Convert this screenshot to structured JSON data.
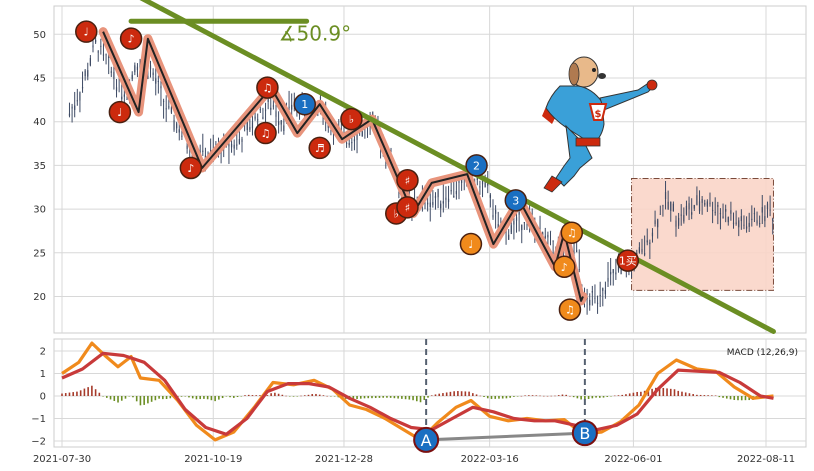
{
  "chart_data": [
    {
      "type": "candlestick",
      "x_ticks": [
        "2021-07-30",
        "2021-10-19",
        "2021-12-28",
        "2022-03-16",
        "2022-06-01",
        "2022-08-11"
      ],
      "y_ticks": [
        20,
        25,
        30,
        35,
        40,
        45,
        50
      ],
      "ylim": [
        15.5,
        53.5
      ],
      "price_path": [
        {
          "x": "2021-08-03",
          "y": 41
        },
        {
          "x": "2021-08-10",
          "y": 44
        },
        {
          "x": "2021-08-17",
          "y": 49
        },
        {
          "x": "2021-08-25",
          "y": 46
        },
        {
          "x": "2021-09-02",
          "y": 43
        },
        {
          "x": "2021-09-08",
          "y": 47
        },
        {
          "x": "2021-09-15",
          "y": 46
        },
        {
          "x": "2021-09-23",
          "y": 42
        },
        {
          "x": "2021-10-01",
          "y": 39
        },
        {
          "x": "2021-10-08",
          "y": 37
        },
        {
          "x": "2021-10-16",
          "y": 36
        },
        {
          "x": "2021-10-25",
          "y": 37
        },
        {
          "x": "2021-11-03",
          "y": 38
        },
        {
          "x": "2021-11-12",
          "y": 41
        },
        {
          "x": "2021-11-20",
          "y": 42
        },
        {
          "x": "2021-11-25",
          "y": 40
        },
        {
          "x": "2021-12-01",
          "y": 42
        },
        {
          "x": "2021-12-08",
          "y": 41
        },
        {
          "x": "2021-12-15",
          "y": 42
        },
        {
          "x": "2021-12-22",
          "y": 39
        },
        {
          "x": "2021-12-30",
          "y": 38
        },
        {
          "x": "2022-01-06",
          "y": 39
        },
        {
          "x": "2022-01-12",
          "y": 40
        },
        {
          "x": "2022-01-19",
          "y": 37
        },
        {
          "x": "2022-01-26",
          "y": 33
        },
        {
          "x": "2022-02-02",
          "y": 30
        },
        {
          "x": "2022-02-09",
          "y": 31
        },
        {
          "x": "2022-02-16",
          "y": 31
        },
        {
          "x": "2022-02-23",
          "y": 32
        },
        {
          "x": "2022-03-02",
          "y": 33
        },
        {
          "x": "2022-03-09",
          "y": 33
        },
        {
          "x": "2022-03-16",
          "y": 32
        },
        {
          "x": "2022-03-21",
          "y": 27
        },
        {
          "x": "2022-03-28",
          "y": 28
        },
        {
          "x": "2022-04-05",
          "y": 29
        },
        {
          "x": "2022-04-12",
          "y": 27
        },
        {
          "x": "2022-04-19",
          "y": 26
        },
        {
          "x": "2022-04-26",
          "y": 24
        },
        {
          "x": "2022-05-02",
          "y": 25
        },
        {
          "x": "2022-05-06",
          "y": 19
        },
        {
          "x": "2022-05-12",
          "y": 20
        },
        {
          "x": "2022-05-19",
          "y": 22
        },
        {
          "x": "2022-05-26",
          "y": 23
        },
        {
          "x": "2022-06-01",
          "y": 24
        },
        {
          "x": "2022-06-06",
          "y": 25
        },
        {
          "x": "2022-06-12",
          "y": 28
        },
        {
          "x": "2022-06-18",
          "y": 31
        },
        {
          "x": "2022-06-25",
          "y": 29
        },
        {
          "x": "2022-07-02",
          "y": 30
        },
        {
          "x": "2022-07-09",
          "y": 31
        },
        {
          "x": "2022-07-16",
          "y": 30
        },
        {
          "x": "2022-07-23",
          "y": 29
        },
        {
          "x": "2022-07-30",
          "y": 28
        },
        {
          "x": "2022-08-06",
          "y": 29
        },
        {
          "x": "2022-08-12",
          "y": 30
        },
        {
          "x": "2022-08-15",
          "y": 29
        }
      ],
      "wave_path": [
        {
          "x": "2021-08-21",
          "y": 50.3
        },
        {
          "x": "2021-09-09",
          "y": 41.1
        },
        {
          "x": "2021-09-14",
          "y": 49.5
        },
        {
          "x": "2021-10-13",
          "y": 34.7
        },
        {
          "x": "2021-11-19",
          "y": 43.9
        },
        {
          "x": "2021-12-03",
          "y": 38.7
        },
        {
          "x": "2021-12-15",
          "y": 42.0
        },
        {
          "x": "2021-12-27",
          "y": 38.0
        },
        {
          "x": "2022-01-12",
          "y": 40.3
        },
        {
          "x": "2022-02-03",
          "y": 29.5
        },
        {
          "x": "2022-02-13",
          "y": 33.0
        },
        {
          "x": "2022-03-04",
          "y": 34.0
        },
        {
          "x": "2022-03-18",
          "y": 26.0
        },
        {
          "x": "2022-04-01",
          "y": 31.0
        },
        {
          "x": "2022-04-20",
          "y": 23.4
        },
        {
          "x": "2022-04-25",
          "y": 27.3
        },
        {
          "x": "2022-05-04",
          "y": 19.5
        },
        {
          "x": "2022-05-05",
          "y": 20.0
        }
      ],
      "markers": [
        {
          "x": "2021-08-12",
          "y": 50.3,
          "color": "#cc2a0e",
          "label": "♩"
        },
        {
          "x": "2021-08-30",
          "y": 41.1,
          "color": "#cc2a0e",
          "label": "♩"
        },
        {
          "x": "2021-09-05",
          "y": 49.5,
          "color": "#cc2a0e",
          "label": "♪"
        },
        {
          "x": "2021-10-07",
          "y": 34.7,
          "color": "#cc2a0e",
          "label": "♪"
        },
        {
          "x": "2021-11-17",
          "y": 43.9,
          "color": "#cc2a0e",
          "label": "♫"
        },
        {
          "x": "2021-11-16",
          "y": 38.7,
          "color": "#cc2a0e",
          "label": "♫"
        },
        {
          "x": "2021-12-07",
          "y": 42.0,
          "color": "#1a6fc2",
          "label": "1"
        },
        {
          "x": "2021-12-15",
          "y": 37.0,
          "color": "#cc2a0e",
          "label": "♬"
        },
        {
          "x": "2022-01-01",
          "y": 40.3,
          "color": "#cc2a0e",
          "label": "♭"
        },
        {
          "x": "2022-01-25",
          "y": 29.5,
          "color": "#cc2a0e",
          "label": "♭"
        },
        {
          "x": "2022-01-31",
          "y": 33.3,
          "color": "#cc2a0e",
          "label": "♯"
        },
        {
          "x": "2022-01-31",
          "y": 30.2,
          "color": "#cc2a0e",
          "label": "♯"
        },
        {
          "x": "2022-03-09",
          "y": 35.0,
          "color": "#1a6fc2",
          "label": "2"
        },
        {
          "x": "2022-03-06",
          "y": 26.0,
          "color": "#f08a1c",
          "label": "♩"
        },
        {
          "x": "2022-03-30",
          "y": 31.0,
          "color": "#1a6fc2",
          "label": "3"
        },
        {
          "x": "2022-04-25",
          "y": 23.4,
          "color": "#f08a1c",
          "label": "♪"
        },
        {
          "x": "2022-04-29",
          "y": 27.3,
          "color": "#f08a1c",
          "label": "♫"
        },
        {
          "x": "2022-04-28",
          "y": 18.5,
          "color": "#f08a1c",
          "label": "♫"
        },
        {
          "x": "2022-05-29",
          "y": 24.1,
          "color": "#cc2a0e",
          "label": "1买"
        }
      ],
      "trendline": {
        "start": {
          "x": "2021-08-25",
          "y": 56.0
        },
        "end": {
          "x": "2022-08-15",
          "y": 16.0
        }
      },
      "angle_label": "∡50.9°",
      "angle_arm": {
        "from": "2021-09-05",
        "to": "2021-12-08",
        "y": 51.5
      },
      "consolidation_box": {
        "x1": "2022-05-31",
        "x2": "2022-08-15",
        "y1": 20.7,
        "y2": 33.5
      },
      "style": {
        "grid": true,
        "trendline_color": "#6b8e23",
        "wave_color": "#e8947c",
        "candle_color": "#3d4a64",
        "box_fill": "#fad5c8",
        "box_border": "#7a4a3a"
      }
    },
    {
      "type": "macd",
      "legend": "MACD (12,26,9)",
      "y_ticks": [
        2,
        1,
        0,
        -1,
        -2
      ],
      "ylim": [
        -2.15,
        2.45
      ],
      "macd_line": [
        {
          "x": "2021-07-30",
          "y": 1.0
        },
        {
          "x": "2021-08-08",
          "y": 1.5
        },
        {
          "x": "2021-08-15",
          "y": 2.35
        },
        {
          "x": "2021-08-22",
          "y": 1.8
        },
        {
          "x": "2021-08-29",
          "y": 1.3
        },
        {
          "x": "2021-09-05",
          "y": 1.75
        },
        {
          "x": "2021-09-10",
          "y": 0.8
        },
        {
          "x": "2021-09-20",
          "y": 0.7
        },
        {
          "x": "2021-09-30",
          "y": -0.2
        },
        {
          "x": "2021-10-10",
          "y": -1.3
        },
        {
          "x": "2021-10-20",
          "y": -1.95
        },
        {
          "x": "2021-10-30",
          "y": -1.6
        },
        {
          "x": "2021-11-10",
          "y": -0.5
        },
        {
          "x": "2021-11-20",
          "y": 0.6
        },
        {
          "x": "2021-12-01",
          "y": 0.5
        },
        {
          "x": "2021-12-12",
          "y": 0.7
        },
        {
          "x": "2021-12-22",
          "y": 0.3
        },
        {
          "x": "2021-12-31",
          "y": -0.4
        },
        {
          "x": "2022-01-09",
          "y": -0.6
        },
        {
          "x": "2022-01-19",
          "y": -1.0
        },
        {
          "x": "2022-01-29",
          "y": -1.5
        },
        {
          "x": "2022-02-07",
          "y": -1.95
        },
        {
          "x": "2022-02-16",
          "y": -1.2
        },
        {
          "x": "2022-02-26",
          "y": -0.5
        },
        {
          "x": "2022-03-06",
          "y": -0.2
        },
        {
          "x": "2022-03-16",
          "y": -0.9
        },
        {
          "x": "2022-03-26",
          "y": -1.1
        },
        {
          "x": "2022-04-05",
          "y": -1.0
        },
        {
          "x": "2022-04-15",
          "y": -1.1
        },
        {
          "x": "2022-04-25",
          "y": -1.05
        },
        {
          "x": "2022-05-05",
          "y": -1.7
        },
        {
          "x": "2022-05-15",
          "y": -1.6
        },
        {
          "x": "2022-05-25",
          "y": -1.15
        },
        {
          "x": "2022-06-04",
          "y": -0.4
        },
        {
          "x": "2022-06-14",
          "y": 1.0
        },
        {
          "x": "2022-06-24",
          "y": 1.6
        },
        {
          "x": "2022-07-05",
          "y": 1.2
        },
        {
          "x": "2022-07-15",
          "y": 1.1
        },
        {
          "x": "2022-07-25",
          "y": 0.4
        },
        {
          "x": "2022-08-04",
          "y": -0.1
        },
        {
          "x": "2022-08-15",
          "y": 0.0
        }
      ],
      "signal_line": [
        {
          "x": "2021-07-30",
          "y": 0.8
        },
        {
          "x": "2021-08-10",
          "y": 1.2
        },
        {
          "x": "2021-08-21",
          "y": 1.9
        },
        {
          "x": "2021-09-01",
          "y": 1.8
        },
        {
          "x": "2021-09-12",
          "y": 1.5
        },
        {
          "x": "2021-09-23",
          "y": 0.7
        },
        {
          "x": "2021-10-04",
          "y": -0.6
        },
        {
          "x": "2021-10-15",
          "y": -1.4
        },
        {
          "x": "2021-10-26",
          "y": -1.7
        },
        {
          "x": "2021-11-06",
          "y": -1.0
        },
        {
          "x": "2021-11-17",
          "y": 0.2
        },
        {
          "x": "2021-11-28",
          "y": 0.55
        },
        {
          "x": "2021-12-09",
          "y": 0.55
        },
        {
          "x": "2021-12-20",
          "y": 0.4
        },
        {
          "x": "2021-12-31",
          "y": -0.1
        },
        {
          "x": "2022-01-11",
          "y": -0.5
        },
        {
          "x": "2022-01-22",
          "y": -1.0
        },
        {
          "x": "2022-02-02",
          "y": -1.4
        },
        {
          "x": "2022-02-13",
          "y": -1.5
        },
        {
          "x": "2022-02-24",
          "y": -1.0
        },
        {
          "x": "2022-03-07",
          "y": -0.5
        },
        {
          "x": "2022-03-18",
          "y": -0.7
        },
        {
          "x": "2022-03-29",
          "y": -1.0
        },
        {
          "x": "2022-04-09",
          "y": -1.1
        },
        {
          "x": "2022-04-20",
          "y": -1.1
        },
        {
          "x": "2022-05-01",
          "y": -1.3
        },
        {
          "x": "2022-05-12",
          "y": -1.5
        },
        {
          "x": "2022-05-23",
          "y": -1.3
        },
        {
          "x": "2022-06-03",
          "y": -0.8
        },
        {
          "x": "2022-06-14",
          "y": 0.3
        },
        {
          "x": "2022-06-25",
          "y": 1.15
        },
        {
          "x": "2022-07-06",
          "y": 1.1
        },
        {
          "x": "2022-07-17",
          "y": 1.05
        },
        {
          "x": "2022-07-28",
          "y": 0.6
        },
        {
          "x": "2022-08-08",
          "y": 0.0
        },
        {
          "x": "2022-08-15",
          "y": -0.1
        }
      ],
      "histogram_colors": {
        "positive": "#a63a2a",
        "negative": "#6b8e23"
      },
      "vlines": [
        "2022-02-10",
        "2022-05-06"
      ],
      "divergence": [
        {
          "label": "A",
          "x": "2022-02-10",
          "y": -1.95
        },
        {
          "label": "B",
          "x": "2022-05-06",
          "y": -1.65
        }
      ],
      "style": {
        "macd_color": "#f08a1c",
        "signal_color": "#c83a3a",
        "divergence_line_color": "#888888",
        "divergence_marker_color": "#1a6fc2"
      }
    }
  ]
}
